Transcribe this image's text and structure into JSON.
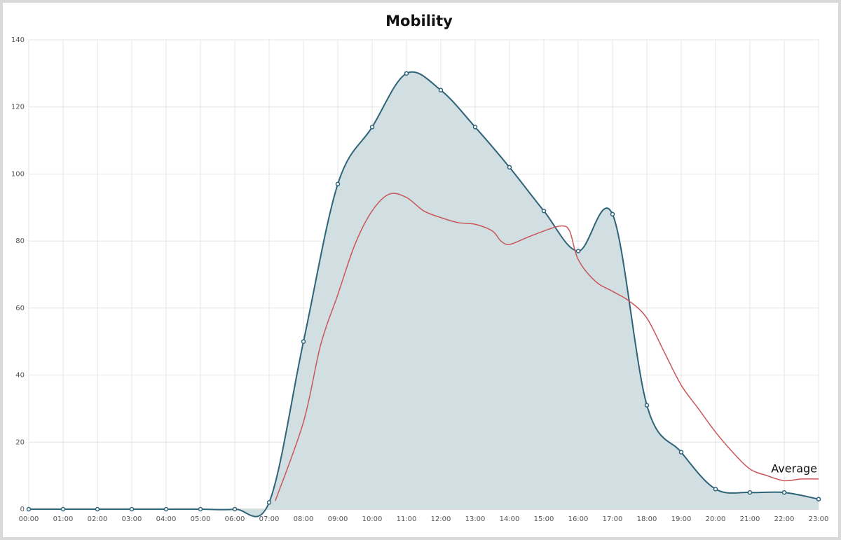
{
  "chart_data": {
    "type": "area",
    "title": "Mobility",
    "xlim": [
      0,
      23
    ],
    "xticks": [
      {
        "value": 0,
        "label": "00:00"
      },
      {
        "value": 1,
        "label": "01:00"
      },
      {
        "value": 2,
        "label": "02:00"
      },
      {
        "value": 3,
        "label": "03:00"
      },
      {
        "value": 4,
        "label": "04:00"
      },
      {
        "value": 5,
        "label": "05:00"
      },
      {
        "value": 6,
        "label": "06:00"
      },
      {
        "value": 7,
        "label": "07:00"
      },
      {
        "value": 8,
        "label": "08:00"
      },
      {
        "value": 9,
        "label": "09:00"
      },
      {
        "value": 10,
        "label": "10:00"
      },
      {
        "value": 11,
        "label": "11:00"
      },
      {
        "value": 12,
        "label": "12:00"
      },
      {
        "value": 13,
        "label": "13:00"
      },
      {
        "value": 14,
        "label": "14:00"
      },
      {
        "value": 15,
        "label": "15:00"
      },
      {
        "value": 16,
        "label": "16:00"
      },
      {
        "value": 17,
        "label": "17:00"
      },
      {
        "value": 18,
        "label": "18:00"
      },
      {
        "value": 19,
        "label": "19:00"
      },
      {
        "value": 20,
        "label": "20:00"
      },
      {
        "value": 21,
        "label": "21:00"
      },
      {
        "value": 22,
        "label": "22:00"
      },
      {
        "value": 23,
        "label": "23:00"
      }
    ],
    "ylim": [
      0,
      140
    ],
    "yticks": [
      0,
      20,
      40,
      60,
      80,
      100,
      120,
      140
    ],
    "grid": true,
    "series": [
      {
        "color": "#2e6378",
        "fill": "#d1dee2",
        "x": [
          0,
          1,
          2,
          3,
          4,
          5,
          6,
          7,
          8,
          9,
          10,
          11,
          12,
          13,
          14,
          15,
          16,
          17,
          18,
          19,
          20,
          21,
          22,
          23
        ],
        "values": [
          0,
          0,
          0,
          0,
          0,
          0,
          0,
          2,
          50,
          97,
          114,
          130,
          125,
          114,
          102,
          89,
          77,
          88,
          31,
          17,
          6,
          5,
          5,
          3
        ]
      },
      {
        "name": "Average",
        "color": "#c9575a",
        "x": [
          7.18,
          8,
          8.5,
          9,
          9.5,
          10,
          10.5,
          11,
          11.5,
          12,
          12.5,
          13,
          13.5,
          13.75,
          14,
          14.5,
          15,
          15.5,
          15.75,
          16,
          16.5,
          17,
          17.5,
          18,
          18.5,
          19,
          19.5,
          20,
          20.5,
          21,
          21.5,
          22,
          22.5,
          23
        ],
        "values": [
          2.5,
          26,
          49,
          64,
          79,
          89,
          94,
          93,
          89,
          87,
          85.5,
          85,
          83,
          80,
          79,
          81,
          83,
          84.5,
          83,
          74.5,
          68,
          65,
          62,
          57,
          47,
          37,
          30,
          23,
          17,
          12,
          10,
          8.5,
          9,
          9
        ]
      }
    ]
  }
}
